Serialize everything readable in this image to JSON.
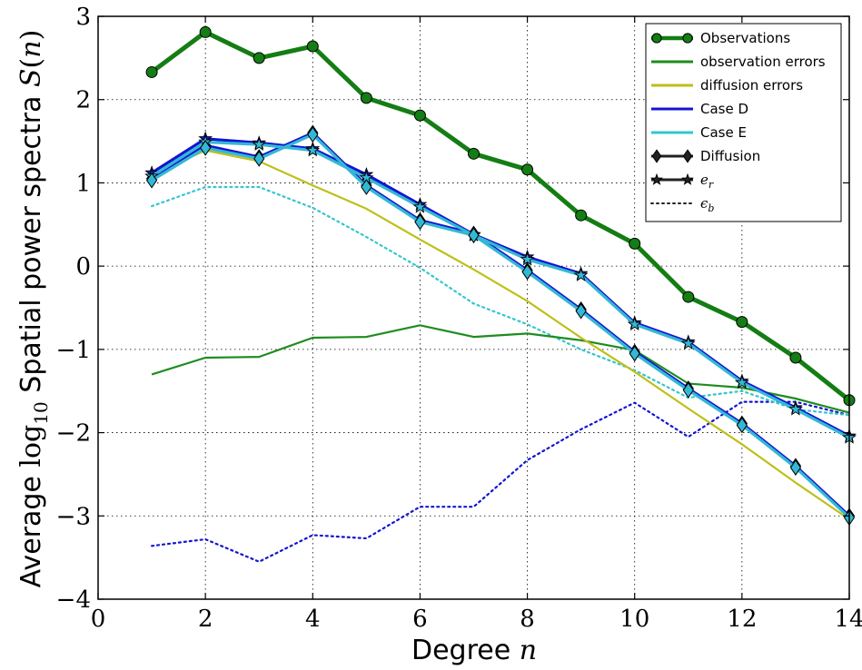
{
  "chart_data": {
    "type": "line",
    "xlabel": {
      "prefix": "Degree ",
      "var": "n"
    },
    "ylabel": {
      "prefix": "Average ",
      "log": "log",
      "base": "10",
      "middle": " Spatial power spectra ",
      "func": "S",
      "var": "n"
    },
    "xlim": [
      0,
      14
    ],
    "ylim": [
      -4,
      3
    ],
    "xticks": [
      0,
      2,
      4,
      6,
      8,
      10,
      12,
      14
    ],
    "yticks": [
      -4,
      -3,
      -2,
      -1,
      0,
      1,
      2,
      3
    ],
    "grid": true,
    "legend_position": "top-right",
    "series": [
      {
        "key": "observations",
        "color": "#147d14",
        "style": "solid",
        "marker": "circle",
        "x": [
          1,
          2,
          3,
          4,
          5,
          6,
          7,
          8,
          9,
          10,
          11,
          12,
          13,
          14
        ],
        "y": [
          2.33,
          2.81,
          2.5,
          2.64,
          2.02,
          1.81,
          1.35,
          1.16,
          0.61,
          0.27,
          -0.37,
          -0.67,
          -1.1,
          -1.61
        ]
      },
      {
        "key": "obs_errors",
        "color": "#1e8c1e",
        "style": "solid",
        "marker": "none",
        "x": [
          1,
          2,
          3,
          4,
          5,
          6,
          7,
          8,
          9,
          10,
          11,
          12,
          13,
          14
        ],
        "y": [
          -1.3,
          -1.1,
          -1.09,
          -0.86,
          -0.85,
          -0.71,
          -0.85,
          -0.81,
          -0.89,
          -1.01,
          -1.41,
          -1.46,
          -1.59,
          -1.76
        ]
      },
      {
        "key": "diff_errors",
        "color": "#bfbf1a",
        "style": "solid",
        "marker": "none",
        "x": [
          1,
          2,
          3,
          4,
          5,
          6,
          7,
          8,
          9,
          10,
          11,
          12,
          13,
          14
        ],
        "y": [
          1.1,
          1.39,
          1.26,
          0.97,
          0.69,
          0.32,
          -0.04,
          -0.42,
          -0.86,
          -1.27,
          -1.71,
          -2.14,
          -2.6,
          -3.04
        ]
      },
      {
        "key": "caseD_er",
        "color": "#1414d2",
        "style": "solid",
        "marker": "star",
        "x": [
          1,
          2,
          3,
          4,
          5,
          6,
          7,
          8,
          9,
          10,
          11,
          12,
          13,
          14
        ],
        "y": [
          1.12,
          1.53,
          1.48,
          1.41,
          1.1,
          0.74,
          0.38,
          0.11,
          -0.09,
          -0.68,
          -0.91,
          -1.38,
          -1.7,
          -2.04
        ]
      },
      {
        "key": "caseD_diff",
        "color": "#1414d2",
        "style": "solid",
        "marker": "diamond",
        "x": [
          1,
          2,
          3,
          4,
          5,
          6,
          7,
          8,
          9,
          10,
          11,
          12,
          13,
          14
        ],
        "y": [
          1.05,
          1.45,
          1.31,
          1.6,
          0.97,
          0.55,
          0.39,
          -0.05,
          -0.52,
          -1.03,
          -1.47,
          -1.89,
          -2.4,
          -3.0
        ]
      },
      {
        "key": "caseE_er",
        "color": "#33b8d4",
        "style": "solid",
        "marker": "star",
        "x": [
          1,
          2,
          3,
          4,
          5,
          6,
          7,
          8,
          9,
          10,
          11,
          12,
          13,
          14
        ],
        "y": [
          1.08,
          1.49,
          1.46,
          1.39,
          1.06,
          0.71,
          0.37,
          0.08,
          -0.11,
          -0.7,
          -0.93,
          -1.4,
          -1.72,
          -2.06
        ]
      },
      {
        "key": "caseE_diff",
        "color": "#33b8d4",
        "style": "solid",
        "marker": "diamond",
        "x": [
          1,
          2,
          3,
          4,
          5,
          6,
          7,
          8,
          9,
          10,
          11,
          12,
          13,
          14
        ],
        "y": [
          1.03,
          1.42,
          1.29,
          1.58,
          0.95,
          0.53,
          0.37,
          -0.07,
          -0.54,
          -1.05,
          -1.49,
          -1.91,
          -2.42,
          -3.02
        ]
      },
      {
        "key": "caseD_eb",
        "color": "#1414d2",
        "style": "dotted",
        "marker": "none",
        "x": [
          1,
          2,
          3,
          4,
          5,
          6,
          7,
          8,
          9,
          10,
          11,
          12,
          13,
          14
        ],
        "y": [
          -3.36,
          -3.28,
          -3.55,
          -3.23,
          -3.27,
          -2.89,
          -2.89,
          -2.33,
          -1.96,
          -1.64,
          -2.05,
          -1.63,
          -1.63,
          -1.79
        ]
      },
      {
        "key": "caseE_eb",
        "color": "#33c6cc",
        "style": "dotted",
        "marker": "none",
        "x": [
          1,
          2,
          3,
          4,
          5,
          6,
          7,
          8,
          9,
          10,
          11,
          12,
          13,
          14
        ],
        "y": [
          0.72,
          0.95,
          0.95,
          0.7,
          0.35,
          -0.02,
          -0.45,
          -0.7,
          -1.0,
          -1.25,
          -1.58,
          -1.5,
          -1.72,
          -1.79
        ]
      }
    ],
    "legend": [
      {
        "label": "Observations",
        "kind": "line-marker",
        "color": "#147d14",
        "marker": "circle",
        "math": false
      },
      {
        "label": "observation errors",
        "kind": "line",
        "color": "#1e8c1e",
        "math": false
      },
      {
        "label": "diffusion errors",
        "kind": "line",
        "color": "#bfbf1a",
        "math": false
      },
      {
        "label": "Case D",
        "kind": "line",
        "color": "#1414d2",
        "math": false
      },
      {
        "label": "Case E",
        "kind": "line",
        "color": "#33c6cc",
        "math": false
      },
      {
        "label": "Diffusion",
        "kind": "line-marker",
        "color": "#222222",
        "marker": "diamond",
        "math": false
      },
      {
        "label": "e",
        "sub": "r",
        "kind": "line-marker",
        "color": "#222222",
        "marker": "star",
        "math": true
      },
      {
        "label": "ϵ",
        "sub": "b",
        "kind": "dotted",
        "color": "#222222",
        "math": true
      }
    ]
  }
}
